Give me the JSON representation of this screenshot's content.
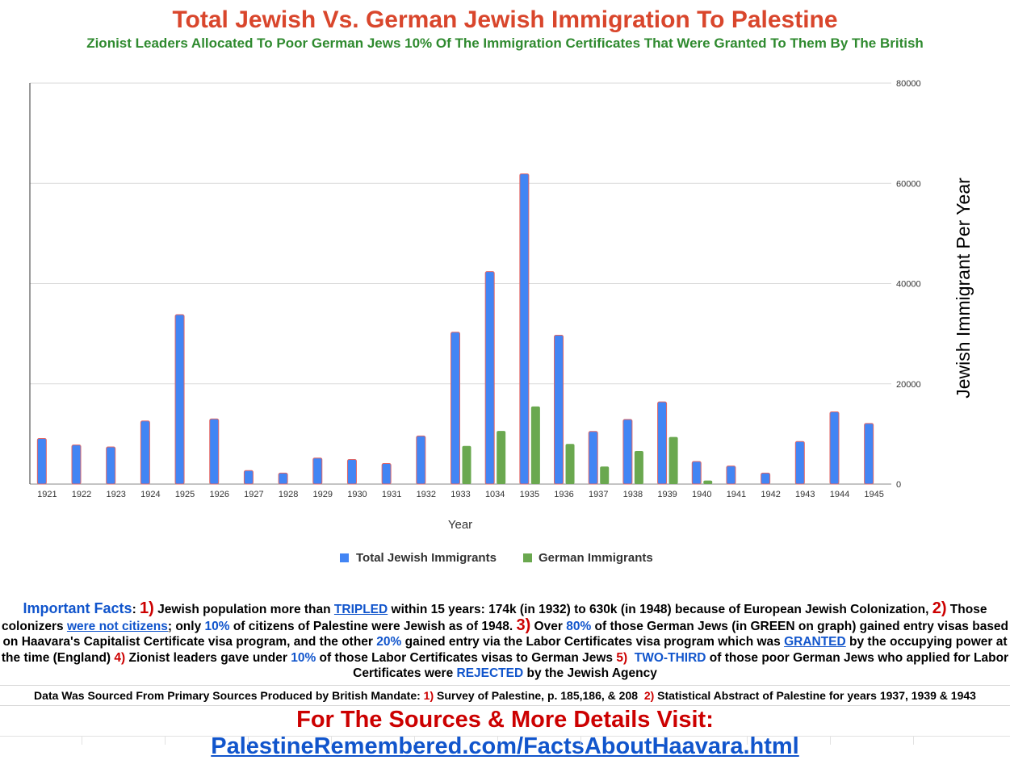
{
  "header": {
    "title": "Total Jewish Vs. German Jewish Immigration To Palestine",
    "subtitle": "Zionist Leaders Allocated To Poor German Jews 10% Of The Immigration Certificates That Were Granted To Them By The British"
  },
  "chart_data": {
    "type": "bar",
    "categories": [
      "1921",
      "1922",
      "1923",
      "1924",
      "1925",
      "1926",
      "1927",
      "1928",
      "1929",
      "1930",
      "1931",
      "1932",
      "1933",
      "1034",
      "1935",
      "1936",
      "1937",
      "1938",
      "1939",
      "1940",
      "1941",
      "1942",
      "1943",
      "1944",
      "1945"
    ],
    "series": [
      {
        "name": "Total Jewish Immigrants",
        "color": "#4285f4",
        "values": [
          9100,
          7800,
          7400,
          12600,
          33800,
          13000,
          2700,
          2200,
          5200,
          4900,
          4100,
          9600,
          30300,
          42400,
          61900,
          29700,
          10500,
          12900,
          16400,
          4500,
          3600,
          2200,
          8500,
          14400,
          12100
        ]
      },
      {
        "name": "German Immigrants",
        "color": "#6aa84f",
        "values": [
          0,
          0,
          0,
          0,
          0,
          0,
          0,
          0,
          0,
          0,
          0,
          0,
          7600,
          10600,
          15500,
          8000,
          3500,
          6600,
          9400,
          700,
          0,
          0,
          0,
          0,
          0
        ]
      }
    ],
    "xlabel": "Year",
    "ylabel": "Jewish Immigrant Per Year",
    "ylim": [
      0,
      80000
    ],
    "yticks": [
      0,
      20000,
      40000,
      60000,
      80000
    ],
    "grid": true,
    "legend_position": "bottom",
    "y_axis_side": "right",
    "bar_outline_color": "#e06666"
  },
  "facts": {
    "lead": "Important Facts",
    "colon": ": ",
    "n1": "1)",
    "t1a": " Jewish population more than ",
    "t1_link": "TRIPLED",
    "t1b": " within 15 years: 174k (in 1932) to 630k (in 1948) because of European Jewish Colonization, ",
    "n2": "2)",
    "t2a": " Those colonizers ",
    "t2_link": "were not citizens",
    "t2_semi": ";",
    "t2b": " only ",
    "t2_pct": "10%",
    "t2c": " of citizens of Palestine were Jewish as of 1948. ",
    "n3": "3)",
    "t3a": " Over ",
    "t3_pct": "80%",
    "t3b": " of those German Jews (in GREEN on graph) gained entry visas based on Haavara's Capitalist Certificate visa program, and the other ",
    "t3_pct2": "20%",
    "t3c": " gained entry via the Labor Certificates visa program which was ",
    "t3_link": "GRANTED",
    "t3d": " by the occupying power at the time (England) ",
    "n4": "4)",
    "t4a": " Zionist leaders gave under ",
    "t4_pct": "10%",
    "t4b": " of those Labor Certificates visas to German Jews ",
    "n5": "5)",
    "t5_sp": "  ",
    "t5_hl": "TWO-THIRD",
    "t5a": " of those poor German Jews who applied for Labor Certificates were ",
    "t5_rej": "REJECTED",
    "t5b": " by the Jewish Agency"
  },
  "sources": {
    "lead": "Data Was Sourced From Primary Sources Produced by British Mandate: ",
    "n1": "1)",
    "s1": " Survey of Palestine, p. 185,186, & 208  ",
    "n2": "2)",
    "s2": " Statistical Abstract of Palestine for years 1937, 1939 & 1943"
  },
  "footer": {
    "lead": "For The Sources & More Details Visit: ",
    "link": "PalestineRemembered.com/FactsAboutHaavara.html"
  }
}
